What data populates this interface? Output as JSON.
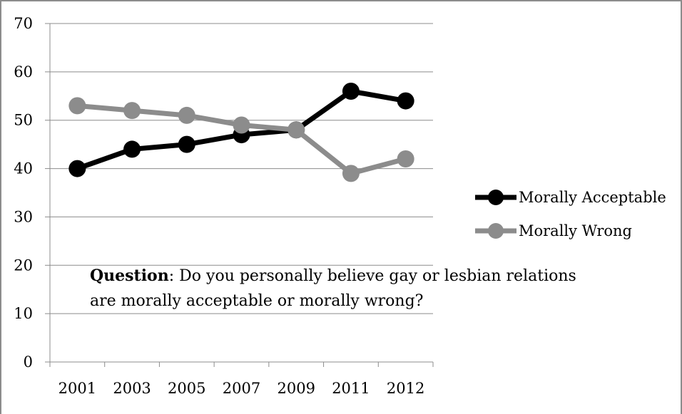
{
  "chart_data": {
    "type": "line",
    "categories": [
      "2001",
      "2003",
      "2005",
      "2007",
      "2009",
      "2011",
      "2012"
    ],
    "series": [
      {
        "name": "Morally Acceptable",
        "color": "#000000",
        "values": [
          40,
          44,
          45,
          47,
          48,
          56,
          54
        ]
      },
      {
        "name": "Morally Wrong",
        "color": "#8c8c8c",
        "values": [
          53,
          52,
          51,
          49,
          48,
          39,
          42
        ]
      }
    ],
    "ylim": [
      0,
      70
    ],
    "yticks": [
      0,
      10,
      20,
      30,
      40,
      50,
      60,
      70
    ],
    "grid": true,
    "legend_position": "right",
    "annotation": {
      "label": "Question",
      "text_line1": ": Do you personally believe gay or lesbian relations",
      "text_line2": "are morally acceptable or morally wrong?"
    }
  }
}
